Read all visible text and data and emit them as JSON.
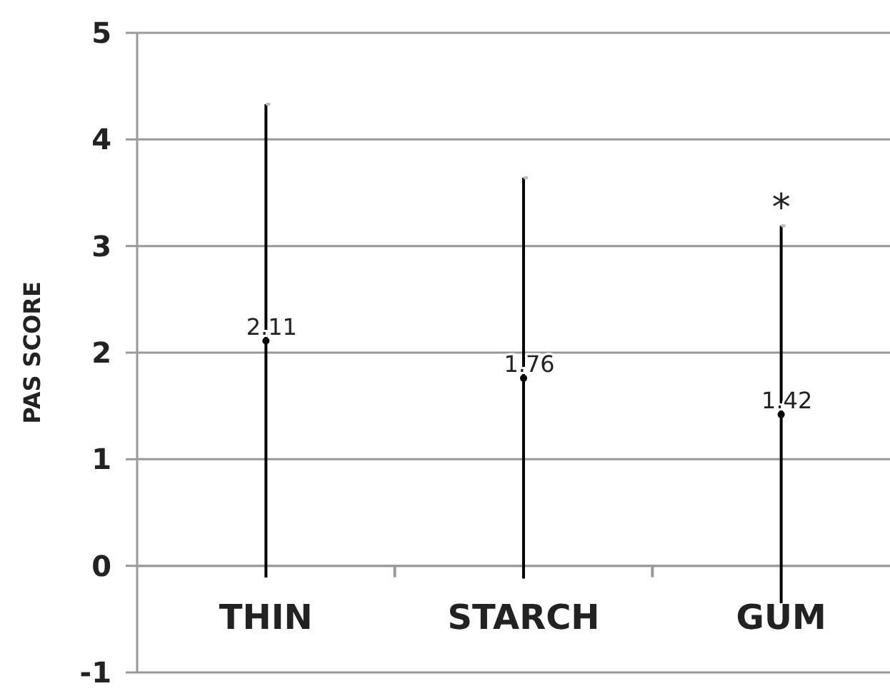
{
  "chart_data": {
    "type": "scatter",
    "ylabel": "PAS SCORE",
    "categories": [
      "THIN",
      "STARCH",
      "GUM"
    ],
    "values": [
      2.11,
      1.76,
      1.42
    ],
    "errors": [
      2.22,
      1.88,
      1.77
    ],
    "color": "#000000",
    "marker": "circle",
    "data_labels": true,
    "ylim": [
      -1,
      5
    ],
    "yticks": [
      -1,
      0,
      1,
      2,
      3,
      4,
      5
    ],
    "grid": "y",
    "annotations": [
      {
        "text": "*",
        "x": "GUM",
        "y": 3.19
      }
    ]
  }
}
